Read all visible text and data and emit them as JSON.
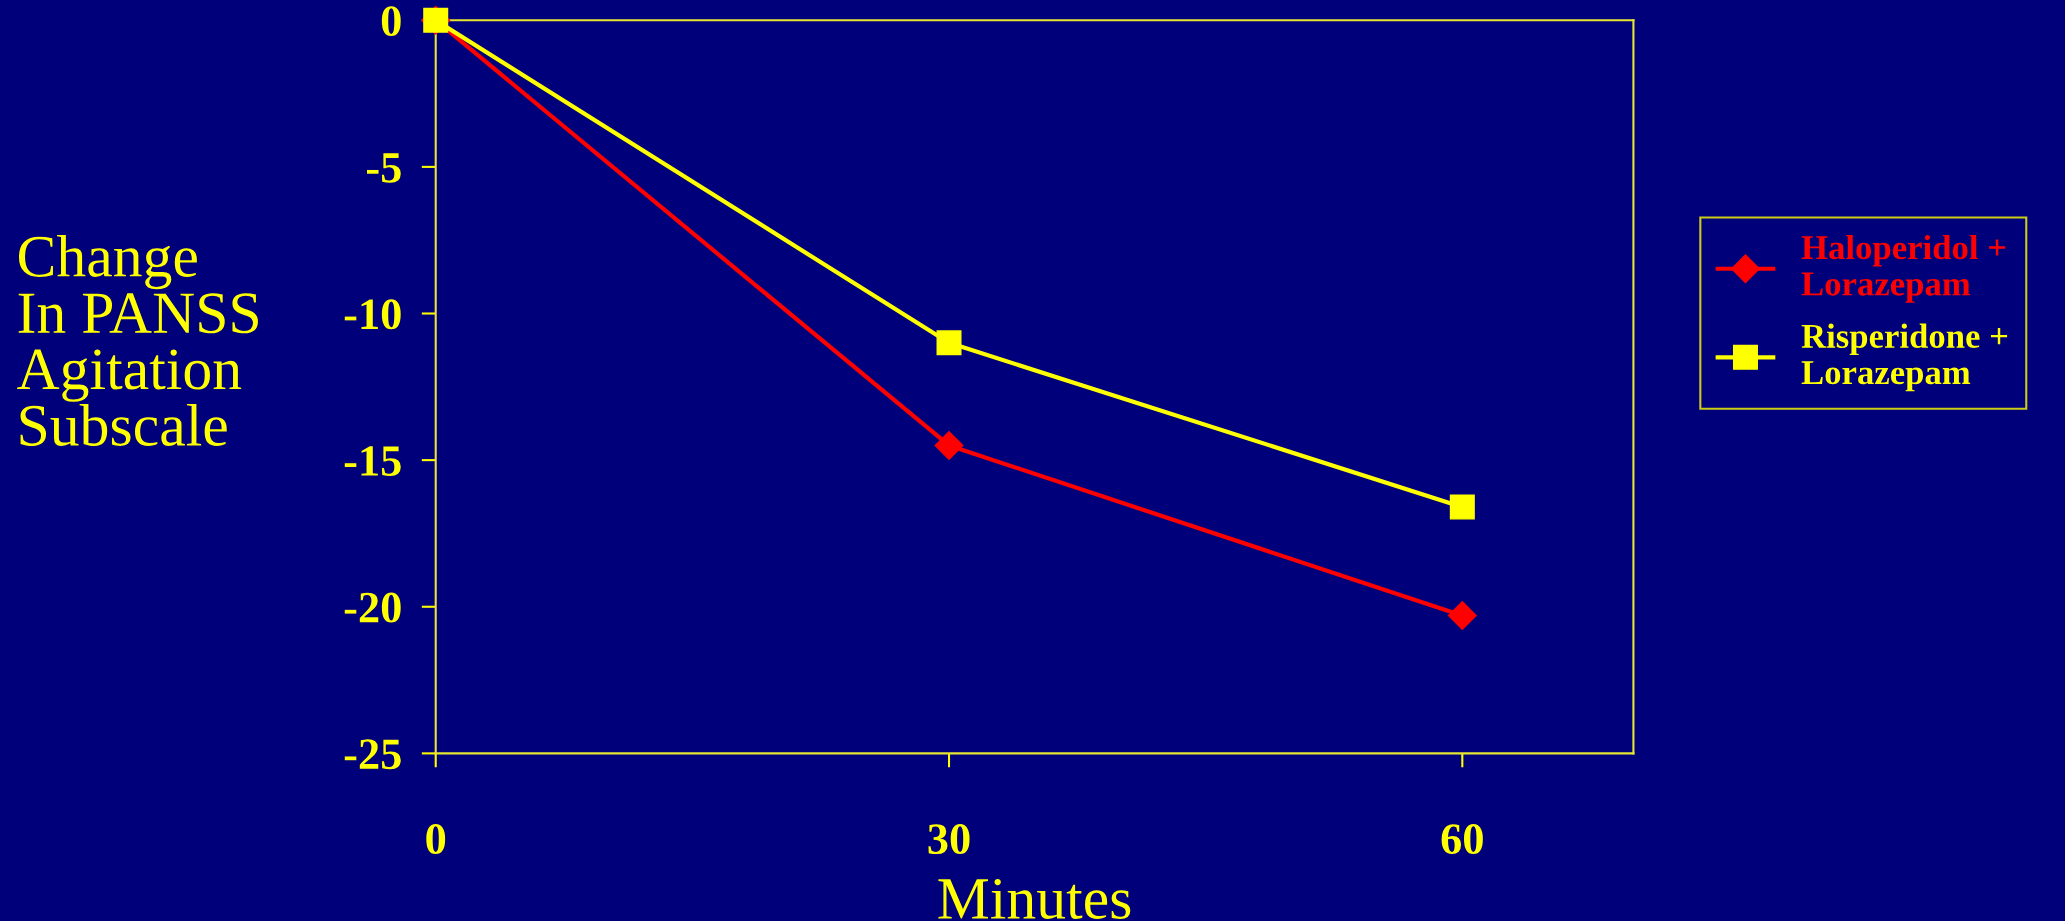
{
  "chart_data": {
    "type": "line",
    "xlabel": "Minutes",
    "ylabel": "Change\nIn PANSS\nAgitation\nSubscale",
    "x": [
      0,
      30,
      60
    ],
    "xlim": [
      0,
      70
    ],
    "xticks": [
      0,
      30,
      60
    ],
    "ylim": [
      -25,
      0
    ],
    "yticks": [
      -25,
      -20,
      -15,
      -10,
      -5,
      0
    ],
    "series": [
      {
        "name": "Haloperidol +\nLorazepam",
        "color": "#ff0000",
        "marker": "diamond",
        "values": [
          0,
          -14.5,
          -20.3
        ]
      },
      {
        "name": "Risperidone +\nLorazepam",
        "color": "#ffff00",
        "marker": "square",
        "values": [
          0,
          -11,
          -16.6
        ]
      }
    ],
    "legend": "right",
    "grid": false
  }
}
